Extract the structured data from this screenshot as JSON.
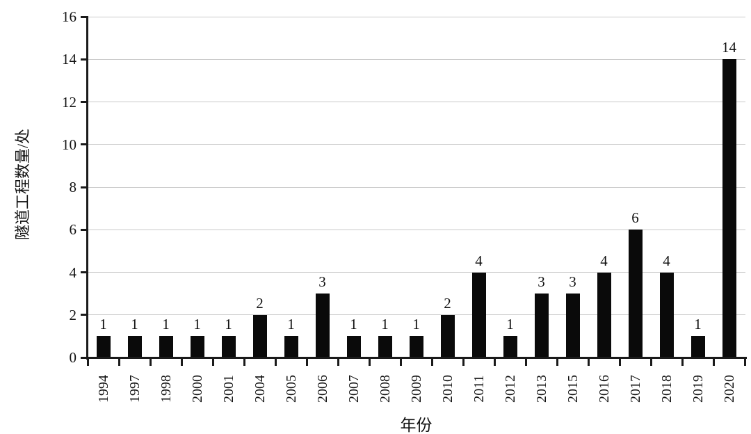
{
  "chart_data": {
    "type": "bar",
    "title": "",
    "xlabel": "年份",
    "ylabel": "隧道工程数量/处",
    "categories": [
      "1994",
      "1997",
      "1998",
      "2000",
      "2001",
      "2004",
      "2005",
      "2006",
      "2007",
      "2008",
      "2009",
      "2010",
      "2011",
      "2012",
      "2013",
      "2015",
      "2016",
      "2017",
      "2018",
      "2019",
      "2020"
    ],
    "values": [
      1,
      1,
      1,
      1,
      1,
      2,
      1,
      3,
      1,
      1,
      1,
      2,
      4,
      1,
      3,
      3,
      4,
      6,
      4,
      1,
      14
    ],
    "ylim": [
      0,
      16
    ],
    "yticks": [
      0,
      2,
      4,
      6,
      8,
      10,
      12,
      14,
      16
    ],
    "grid": true,
    "legend_position": "none",
    "data_labels": true,
    "bar_color": "#0a0a0a",
    "gridline_color": "#c9c9c9",
    "axis_color": "#1a1a1a",
    "background": "#ffffff"
  }
}
